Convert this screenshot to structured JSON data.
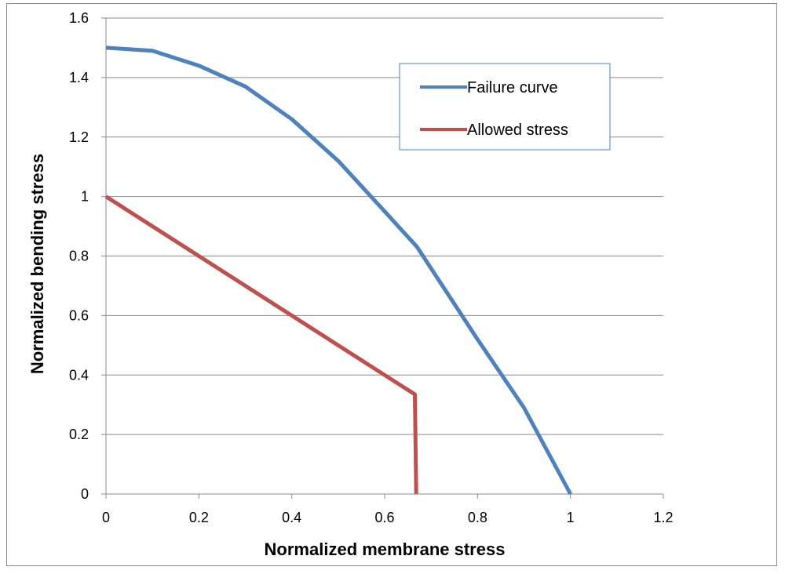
{
  "chart_data": {
    "type": "line",
    "title": "",
    "xlabel": "Normalized membrane stress",
    "ylabel": "Normalized bending stress",
    "xlim": [
      0,
      1.2
    ],
    "ylim": [
      0,
      1.6
    ],
    "xticks": [
      "0",
      "0.2",
      "0.4",
      "0.6",
      "0.8",
      "1",
      "1.2"
    ],
    "yticks": [
      "0",
      "0.2",
      "0.4",
      "0.6",
      "0.8",
      "1",
      "1.2",
      "1.4",
      "1.6"
    ],
    "grid": "horizontal",
    "legend_position": "top-right",
    "series": [
      {
        "name": "Failure curve",
        "color": "#4f81bd",
        "x": [
          0,
          0.1,
          0.2,
          0.3,
          0.4,
          0.5,
          0.6,
          0.67,
          0.8,
          0.9,
          1.0
        ],
        "y": [
          1.5,
          1.49,
          1.44,
          1.37,
          1.26,
          1.12,
          0.95,
          0.83,
          0.52,
          0.29,
          0
        ]
      },
      {
        "name": "Allowed stress",
        "color": "#c0504d",
        "x": [
          0,
          0.2,
          0.4,
          0.6,
          0.665,
          0.668
        ],
        "y": [
          1.0,
          0.8,
          0.6,
          0.4,
          0.335,
          0
        ]
      }
    ]
  }
}
